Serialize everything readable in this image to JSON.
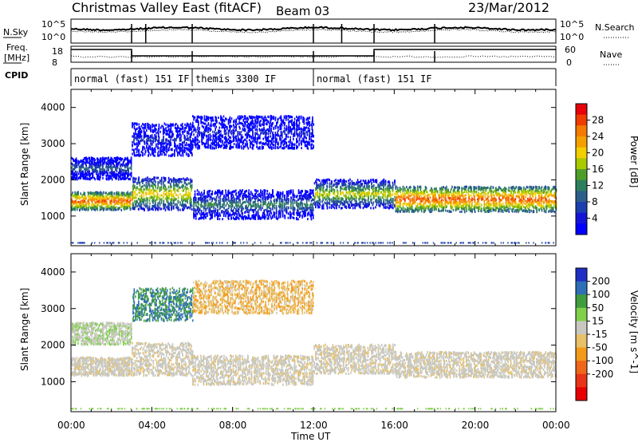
{
  "header": {
    "title": "Christmas Valley East (fitACF)",
    "beam": "Beam 03",
    "date": "23/Mar/2012"
  },
  "strips": {
    "nsky_label": "N.Sky",
    "nsky_ticks": [
      "10^5",
      "10^0"
    ],
    "nsearch_label": "N.Search",
    "nsearch_ticks": [
      "10^5",
      "10^0"
    ],
    "freq_label": "Freq.",
    "freq_unit": "[MHz]",
    "freq_ticks": [
      "18",
      "8"
    ],
    "nave_label": "Nave",
    "nave_ticks": [
      "60",
      "0"
    ],
    "cpid_label": "CPID",
    "cpid_segments": [
      {
        "label": "normal (fast) 151 IF",
        "start": 0.0,
        "end": 6.0
      },
      {
        "label": "themis 3300 IF",
        "start": 6.0,
        "end": 12.0
      },
      {
        "label": "normal (fast) 151 IF",
        "start": 12.0,
        "end": 24.0
      }
    ]
  },
  "power_panel": {
    "ylabel": "Slant Range [km]",
    "yticks": [
      "4000",
      "3000",
      "2000",
      "1000"
    ],
    "colorbar": {
      "label": "Power [dB]",
      "ticks": [
        "28",
        "24",
        "20",
        "16",
        "12",
        "8",
        "4"
      ],
      "colors": [
        "#e8000b",
        "#f03c00",
        "#f57b00",
        "#f3a000",
        "#f4cf00",
        "#a9c900",
        "#4e9d2b",
        "#2e7f5d",
        "#2c5e8c",
        "#1b3fae",
        "#1414d8",
        "#0000ff"
      ]
    }
  },
  "velocity_panel": {
    "ylabel": "Slant Range [km]",
    "yticks": [
      "4000",
      "3000",
      "2000",
      "1000"
    ],
    "colorbar": {
      "label": "Velocity [m s^-1]",
      "ticks": [
        "200",
        "100",
        "50",
        "15",
        "-15",
        "-50",
        "-100",
        "-200"
      ],
      "colors": [
        "#1f2fc4",
        "#2f6fb8",
        "#3f9c3f",
        "#7fd04a",
        "#c8c8c0",
        "#e8c068",
        "#f39a1b",
        "#f0661a",
        "#e83418",
        "#e60000"
      ]
    }
  },
  "xaxis": {
    "label": "Time UT",
    "ticks": [
      "00:00",
      "04:00",
      "08:00",
      "12:00",
      "16:00",
      "20:00",
      "00:00"
    ]
  },
  "chart_data": {
    "type": "heatmap",
    "title": "Christmas Valley East (fitACF)",
    "xlabel": "Time UT",
    "ylabel": "Slant Range [km]",
    "xlim": [
      "00:00",
      "24:00"
    ],
    "ylim": [
      180,
      4500
    ],
    "power_range_db": [
      0,
      30
    ],
    "velocity_range": [
      -250,
      250
    ],
    "scatter_bands": [
      {
        "name": "main",
        "t_start": 0.0,
        "t_end": 3.0,
        "range_center": 1400,
        "range_width": 500,
        "power_db": 26,
        "velocity": 0
      },
      {
        "name": "main",
        "t_start": 3.0,
        "t_end": 6.0,
        "range_center": 1600,
        "range_width": 900,
        "power_db": 20,
        "velocity": 0
      },
      {
        "name": "upper",
        "t_start": 0.0,
        "t_end": 3.0,
        "range_center": 2300,
        "range_width": 600,
        "power_db": 10,
        "velocity": 40
      },
      {
        "name": "upper",
        "t_start": 3.0,
        "t_end": 6.0,
        "range_center": 3100,
        "range_width": 900,
        "power_db": 6,
        "velocity": 150
      },
      {
        "name": "themis",
        "t_start": 6.0,
        "t_end": 12.0,
        "range_center": 1300,
        "range_width": 800,
        "power_db": 12,
        "velocity": 0
      },
      {
        "name": "themis-far",
        "t_start": 6.0,
        "t_end": 12.0,
        "range_center": 3300,
        "range_width": 900,
        "power_db": 5,
        "velocity": -40
      },
      {
        "name": "main",
        "t_start": 12.0,
        "t_end": 16.0,
        "range_center": 1600,
        "range_width": 800,
        "power_db": 18,
        "velocity": 0
      },
      {
        "name": "main",
        "t_start": 16.0,
        "t_end": 24.0,
        "range_center": 1450,
        "range_width": 700,
        "power_db": 26,
        "velocity": 0
      }
    ]
  }
}
